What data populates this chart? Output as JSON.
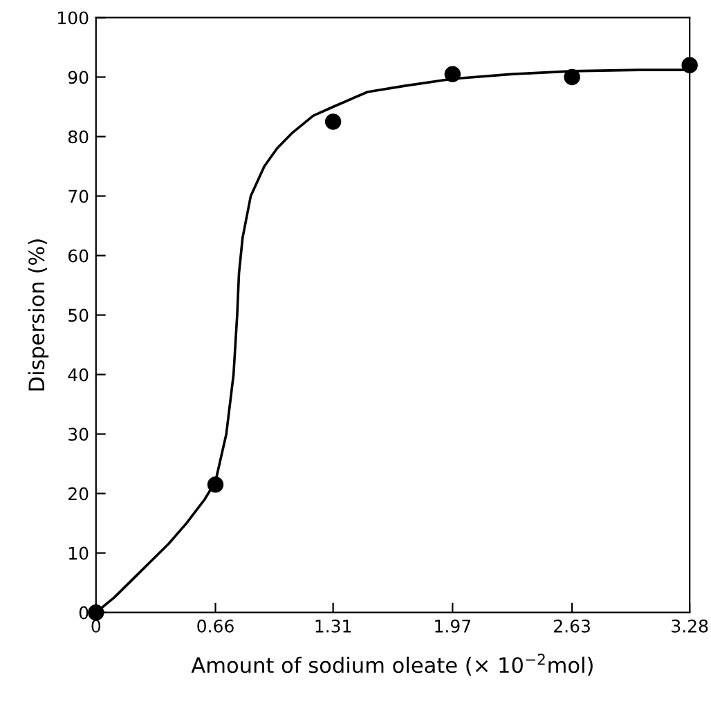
{
  "chart_data": {
    "type": "scatter",
    "xlabel": "Amount of sodium oleate (× 10$^{−2}$mol)",
    "ylabel": "Dispersion (%)",
    "series": [
      {
        "color": "#000000",
        "marker": "circle",
        "x": [
          0,
          0.66,
          1.31,
          1.97,
          2.63,
          3.28
        ],
        "values": [
          0,
          21.5,
          82.5,
          90.5,
          90,
          92
        ]
      },
      {
        "type": "line",
        "color": "#000000",
        "marker": "none",
        "line_style": "solid",
        "x": [
          0,
          0.1,
          0.2,
          0.3,
          0.4,
          0.5,
          0.6,
          0.66,
          0.72,
          0.76,
          0.78,
          0.79,
          0.81,
          0.855,
          0.93,
          1.0,
          1.08,
          1.2,
          1.31,
          1.5,
          1.7,
          1.97,
          2.3,
          2.63,
          3.0,
          3.28
        ],
        "values": [
          0,
          2.5,
          5.5,
          8.5,
          11.5,
          15,
          19,
          22,
          30,
          40,
          50,
          57,
          63,
          70,
          75,
          78,
          80.5,
          83.5,
          85,
          87.5,
          88.5,
          89.7,
          90.5,
          91,
          91.2,
          91.2
        ]
      }
    ],
    "xlim": [
      0,
      3.28
    ],
    "xticks": [
      0,
      0.66,
      1.31,
      1.97,
      2.63,
      3.28
    ],
    "ylim": [
      0,
      100
    ],
    "yticks": [
      0,
      10,
      20,
      30,
      40,
      50,
      60,
      70,
      80,
      90,
      100
    ],
    "grid": false,
    "legend": false
  }
}
